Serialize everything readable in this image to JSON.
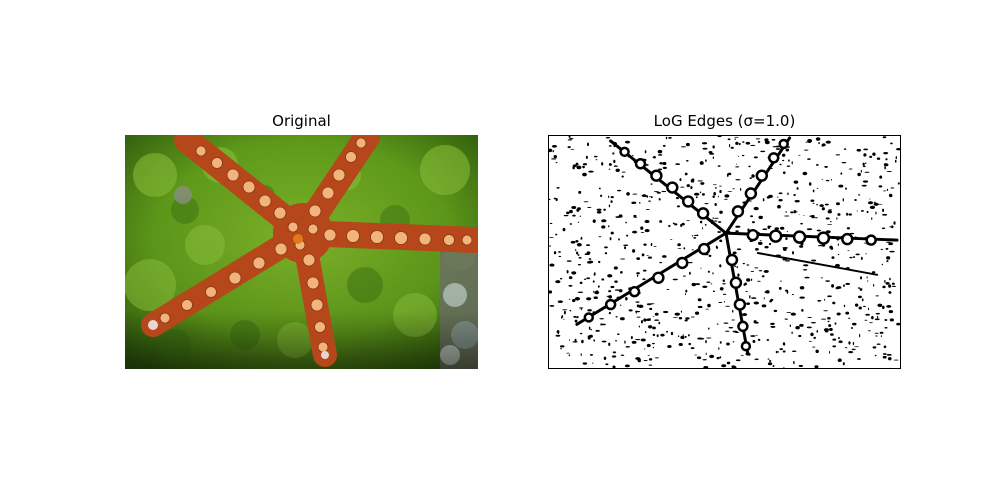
{
  "figure": {
    "panels": [
      {
        "title": "Original",
        "content": "starfish photo on green algae"
      },
      {
        "title": "LoG Edges (σ=1.0)",
        "content": "binary edge map of starfish"
      }
    ]
  }
}
